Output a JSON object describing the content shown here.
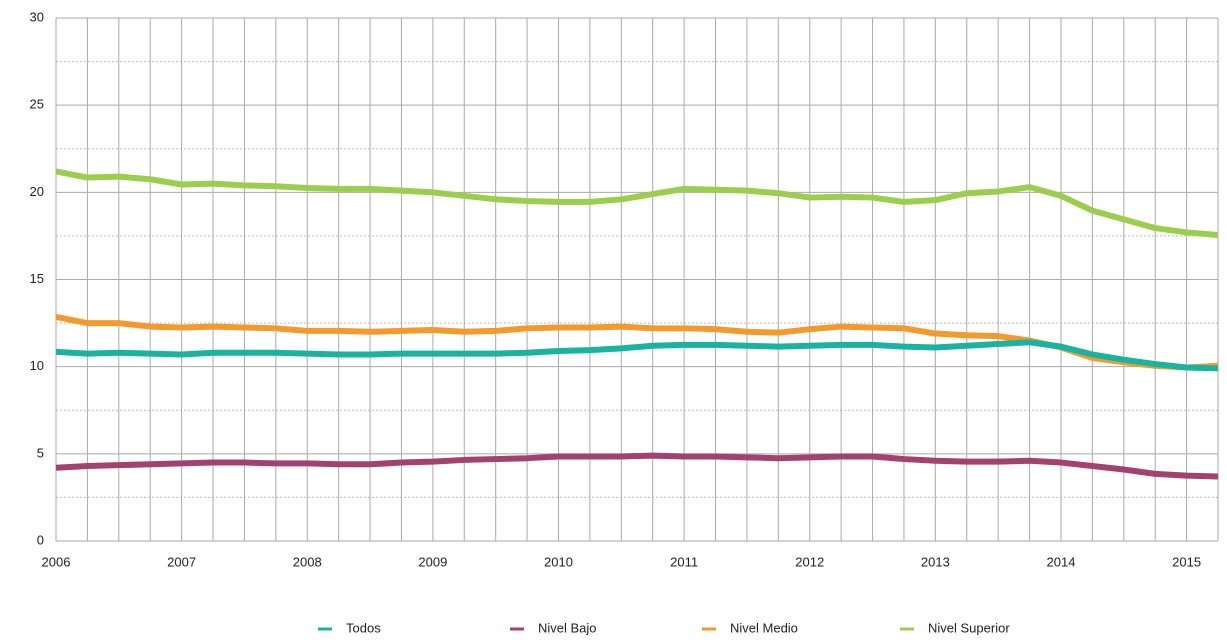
{
  "chart_data": {
    "type": "line",
    "categories": [
      "2006",
      null,
      null,
      null,
      "2007",
      null,
      null,
      null,
      "2008",
      null,
      null,
      null,
      "2009",
      null,
      null,
      null,
      "2010",
      null,
      null,
      null,
      "2011",
      null,
      null,
      null,
      "2012",
      null,
      null,
      null,
      "2013",
      null,
      null,
      null,
      "2014",
      null,
      null,
      null,
      "2015",
      null
    ],
    "series": [
      {
        "name": "Nivel Superior",
        "color": "#9dcd4f",
        "values": [
          21.2,
          20.85,
          20.9,
          20.75,
          20.45,
          20.5,
          20.4,
          20.35,
          20.25,
          20.2,
          20.2,
          20.1,
          20.0,
          19.8,
          19.6,
          19.5,
          19.45,
          19.45,
          19.6,
          19.9,
          20.2,
          20.15,
          20.1,
          19.95,
          19.7,
          19.75,
          19.7,
          19.45,
          19.55,
          19.95,
          20.05,
          20.3,
          19.8,
          18.95,
          18.45,
          17.95,
          17.7,
          17.55
        ]
      },
      {
        "name": "Nivel Medio",
        "color": "#f29a2e",
        "values": [
          12.85,
          12.5,
          12.5,
          12.3,
          12.25,
          12.3,
          12.25,
          12.2,
          12.05,
          12.05,
          12.0,
          12.05,
          12.1,
          12.0,
          12.05,
          12.2,
          12.25,
          12.25,
          12.3,
          12.2,
          12.2,
          12.15,
          12.0,
          11.95,
          12.15,
          12.3,
          12.25,
          12.2,
          11.9,
          11.8,
          11.75,
          11.5,
          11.1,
          10.5,
          10.25,
          10.05,
          9.95,
          10.05
        ]
      },
      {
        "name": "Nivel Bajo",
        "color": "#a3426f",
        "values": [
          4.2,
          4.3,
          4.35,
          4.4,
          4.45,
          4.5,
          4.5,
          4.45,
          4.45,
          4.4,
          4.4,
          4.5,
          4.55,
          4.65,
          4.7,
          4.75,
          4.85,
          4.85,
          4.85,
          4.9,
          4.85,
          4.85,
          4.8,
          4.75,
          4.8,
          4.85,
          4.85,
          4.7,
          4.6,
          4.55,
          4.55,
          4.6,
          4.5,
          4.3,
          4.1,
          3.85,
          3.75,
          3.7
        ]
      },
      {
        "name": "Todos",
        "color": "#1ab3a0",
        "values": [
          10.85,
          10.75,
          10.8,
          10.75,
          10.7,
          10.8,
          10.8,
          10.8,
          10.75,
          10.7,
          10.7,
          10.75,
          10.75,
          10.75,
          10.75,
          10.8,
          10.9,
          10.95,
          11.05,
          11.2,
          11.25,
          11.25,
          11.2,
          11.15,
          11.2,
          11.25,
          11.25,
          11.15,
          11.1,
          11.2,
          11.3,
          11.4,
          11.15,
          10.7,
          10.4,
          10.15,
          9.95,
          9.9
        ]
      }
    ],
    "legend_order": [
      3,
      2,
      1,
      0
    ],
    "ylim": [
      0,
      30
    ],
    "yticks": [
      0,
      5,
      10,
      15,
      20,
      25,
      30
    ],
    "yminorticks": [
      2.5,
      7.5,
      12.5,
      17.5,
      22.5,
      27.5
    ],
    "grid": true
  }
}
